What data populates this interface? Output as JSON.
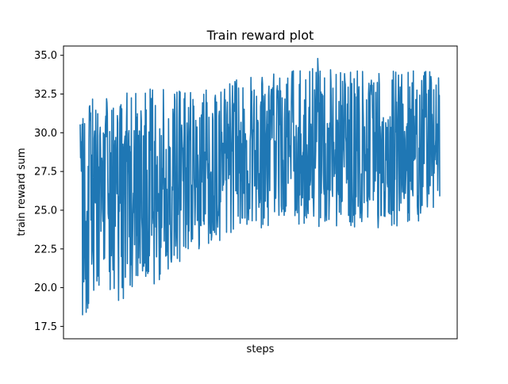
{
  "chart_data": {
    "type": "line",
    "title": "Train reward plot",
    "xlabel": "steps",
    "ylabel": "train reward sum",
    "xticks_visible": false,
    "ylim": [
      16.7,
      35.6
    ],
    "yticks": [
      "17.5",
      "20.0",
      "22.5",
      "25.0",
      "27.5",
      "30.0",
      "32.5",
      "35.0"
    ],
    "grid": false,
    "legend": "none",
    "series": [
      {
        "color": "#1f77b4",
        "samples": 900,
        "trend": {
          "x": [
            0,
            0.05,
            0.12,
            0.2,
            0.3,
            0.45,
            0.6,
            0.8,
            1.0
          ],
          "low": [
            17.5,
            18.6,
            19.2,
            19.8,
            22.2,
            23.6,
            24.0,
            23.8,
            24.2
          ],
          "high": [
            31.5,
            32.5,
            32.8,
            33.0,
            32.6,
            33.5,
            34.2,
            34.0,
            34.0
          ]
        },
        "peak_value": 34.8,
        "min_value": 17.5
      }
    ]
  }
}
